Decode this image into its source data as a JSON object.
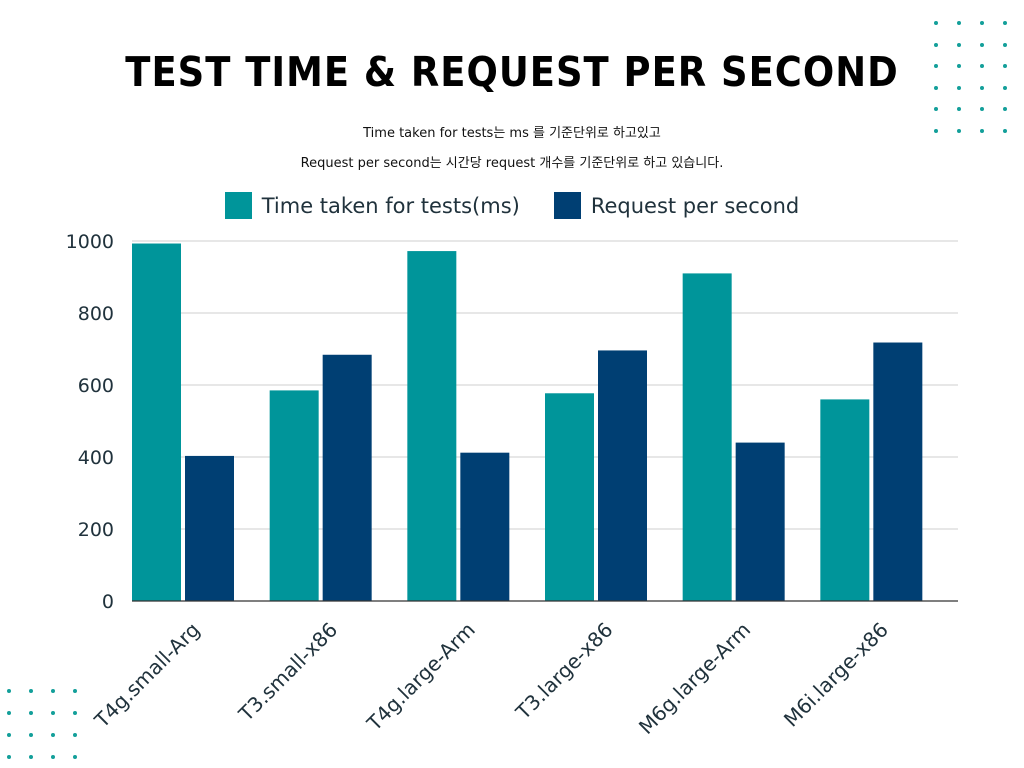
{
  "title": "TEST TIME & REQUEST PER SECOND",
  "subtitles": [
    "Time taken for tests는 ms 를 기준단위로 하고있고",
    "Request per second는 시간당 request 개수를 기준단위로 하고 있습니다."
  ],
  "colors": {
    "teal": "#00959a",
    "navy": "#003f73",
    "grid": "#cfcfcf",
    "axis": "#333333",
    "dots": "#139f9a"
  },
  "chart_data": {
    "type": "bar",
    "categories": [
      "T4g.small-Arg",
      "T3.small-x86",
      "T4g.large-Arm",
      "T3.large-x86",
      "M6g.large-Arm",
      "M6i.large-x86"
    ],
    "series": [
      {
        "name": "Time taken for tests(ms)",
        "values": [
          993,
          585,
          972,
          577,
          910,
          560
        ],
        "color": "#00959a"
      },
      {
        "name": "Request per second",
        "values": [
          403,
          684,
          412,
          696,
          440,
          718
        ],
        "color": "#003f73"
      }
    ],
    "ylim": [
      0,
      1000
    ],
    "y_ticks": [
      0,
      200,
      400,
      600,
      800,
      1000
    ],
    "grid": true,
    "legend_position": "top",
    "x_tick_rotation": "-45"
  }
}
